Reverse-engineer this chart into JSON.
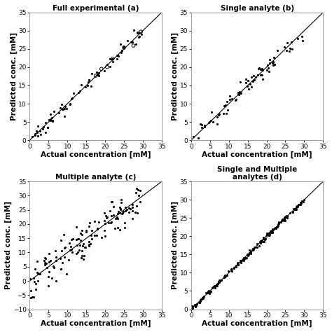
{
  "title_a": "Full experimental (a)",
  "title_b": "Single analyte (b)",
  "title_c": "Multiple analyte (c)",
  "title_d": "Single and Multiple\nanalytes (d)",
  "xlabel": "Actual concentration [mM]",
  "ylabel": "Predicted conc. [mM]",
  "xlim": [
    0,
    35
  ],
  "ylim_abbd": [
    0,
    35
  ],
  "ylim_c": [
    -10,
    35
  ],
  "xticks": [
    0,
    5,
    10,
    15,
    20,
    25,
    30,
    35
  ],
  "yticks_abd": [
    0,
    5,
    10,
    15,
    20,
    25,
    30,
    35
  ],
  "yticks_c": [
    -10,
    -5,
    0,
    5,
    10,
    15,
    20,
    25,
    30,
    35
  ],
  "background_color": "#ffffff",
  "dot_color": "#000000",
  "dot_size": 5,
  "line_color": "#000000",
  "title_fontsize": 7.5,
  "label_fontsize": 7.5,
  "tick_fontsize": 6.5
}
